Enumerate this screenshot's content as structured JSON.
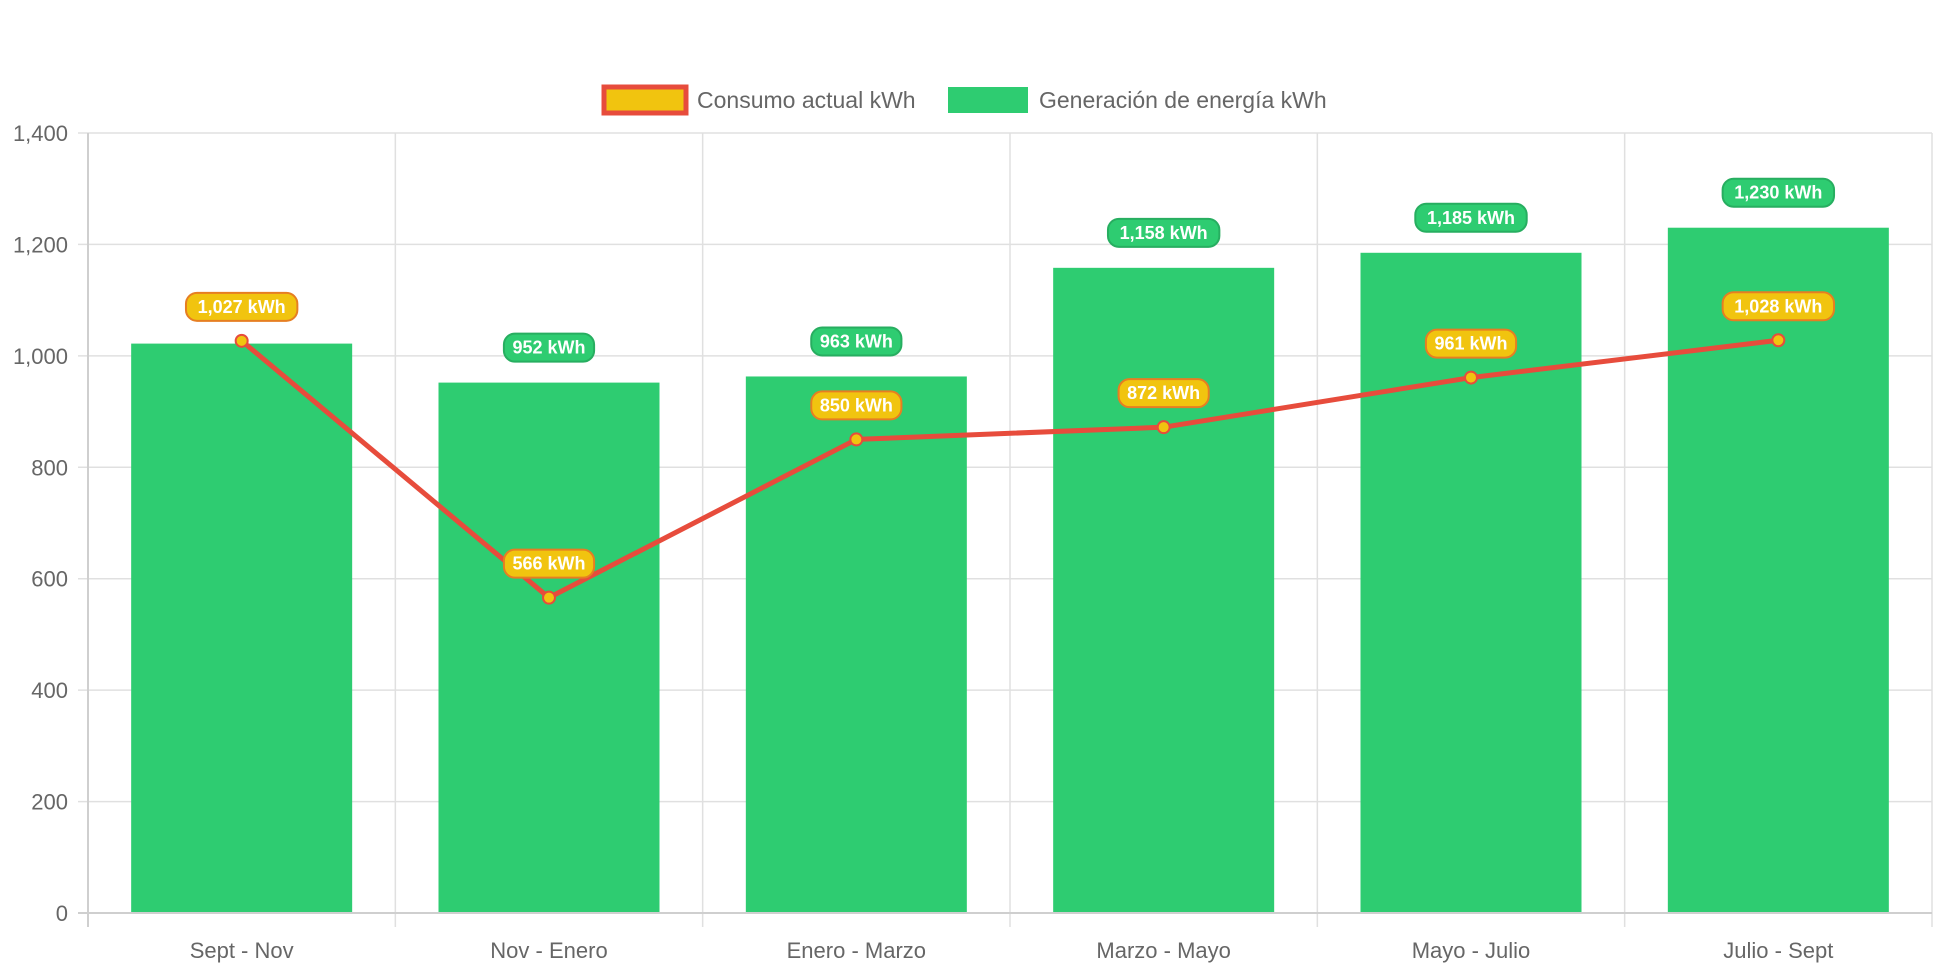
{
  "chart_data": {
    "type": "bar",
    "categories": [
      "Sept - Nov",
      "Nov - Enero",
      "Enero - Marzo",
      "Marzo - Mayo",
      "Mayo - Julio",
      "Julio - Sept"
    ],
    "series": [
      {
        "name": "Consumo actual kWh",
        "type": "line",
        "values": [
          1027,
          566,
          850,
          872,
          961,
          1028
        ],
        "labels": [
          "1,027 kWh",
          "566 kWh",
          "850 kWh",
          "872 kWh",
          "961 kWh",
          "1,028 kWh"
        ],
        "color": "#e74c3c",
        "fill": "#f1c40f"
      },
      {
        "name": "Generación de energía kWh",
        "type": "bar",
        "values": [
          1022,
          952,
          963,
          1158,
          1185,
          1230
        ],
        "labels": [
          "",
          "952 kWh",
          "963 kWh",
          "1,158 kWh",
          "1,185 kWh",
          "1,230 kWh"
        ],
        "color": "#2ecc71"
      }
    ],
    "ylim": [
      0,
      1400
    ],
    "yticks": [
      0,
      200,
      400,
      600,
      800,
      1000,
      1200,
      1400
    ],
    "ytick_labels": [
      "0",
      "200",
      "400",
      "600",
      "800",
      "1,000",
      "1,200",
      "1,400"
    ],
    "grid": true,
    "legend": "top-center",
    "title": "",
    "xlabel": "",
    "ylabel": ""
  }
}
